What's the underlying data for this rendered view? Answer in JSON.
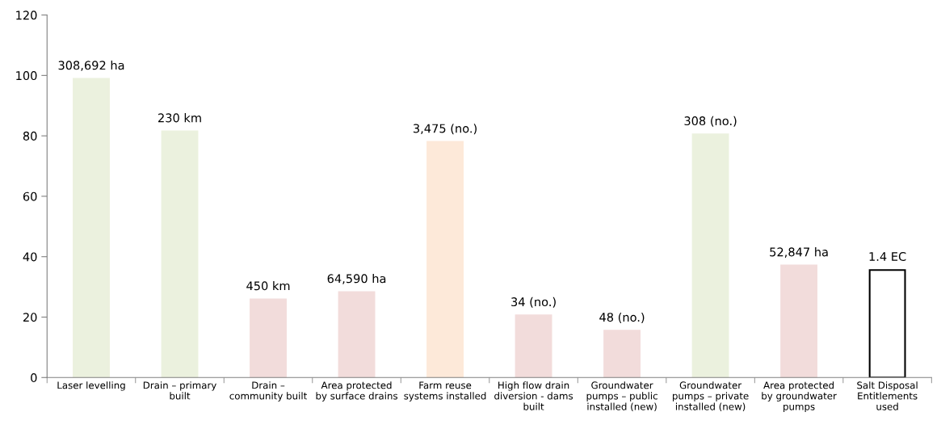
{
  "chart_data": {
    "type": "bar",
    "categories": [
      "Laser levelling",
      "Drain – primary\nbuilt",
      "Drain –\ncommunity built",
      "Area protected\nby surface drains",
      "Farm reuse\nsystems installed",
      "High flow drain\ndiversion - dams\nbuilt",
      "Groundwater\npumps – public\ninstalled (new)",
      "Groundwater\npumps – private\ninstalled (new)",
      "Area protected\nby groundwater\npumps",
      "Salt Disposal\nEntitlements\nused"
    ],
    "values": [
      98.9,
      81.5,
      25.9,
      28.3,
      78.0,
      20.6,
      15.5,
      80.5,
      37.1,
      35.6
    ],
    "colors": [
      "#ebf1de",
      "#ebf1de",
      "#f2dcdb",
      "#f2dcdb",
      "#fde9d9",
      "#f2dcdb",
      "#f2dcdb",
      "#ebf1de",
      "#f2dcdb",
      "#ffffff"
    ],
    "annotations": [
      {
        "text": "308,692 ha",
        "x": "Laser levelling",
        "y": 98.9
      },
      {
        "text": "230 km",
        "x": "Drain – primary\nbuilt",
        "y": 81.5
      },
      {
        "text": "450 km",
        "x": "Drain –\ncommunity built",
        "y": 25.9
      },
      {
        "text": "64,590 ha",
        "x": "Area protected\nby surface drains",
        "y": 28.3
      },
      {
        "text": "3,475 (no.)",
        "x": "Farm reuse\nsystems installed",
        "y": 78.0
      },
      {
        "text": "34 (no.)",
        "x": "High flow drain\ndiversion - dams\nbuilt",
        "y": 20.6
      },
      {
        "text": "48 (no.)",
        "x": "Groundwater\npumps – public\ninstalled (new)",
        "y": 15.5
      },
      {
        "text": "308 (no.)",
        "x": "Groundwater\npumps – private\ninstalled (new)",
        "y": 80.5
      },
      {
        "text": "52,847 ha",
        "x": "Area protected\nby groundwater\npumps",
        "y": 37.1
      },
      {
        "text": "1.4 EC",
        "x": "Salt Disposal\nEntitlements\nused",
        "y": 35.6
      }
    ],
    "ylim": [
      0,
      120
    ],
    "yticks": [
      0,
      20,
      40,
      60,
      80,
      100,
      120
    ],
    "grid": false,
    "legend": false
  }
}
